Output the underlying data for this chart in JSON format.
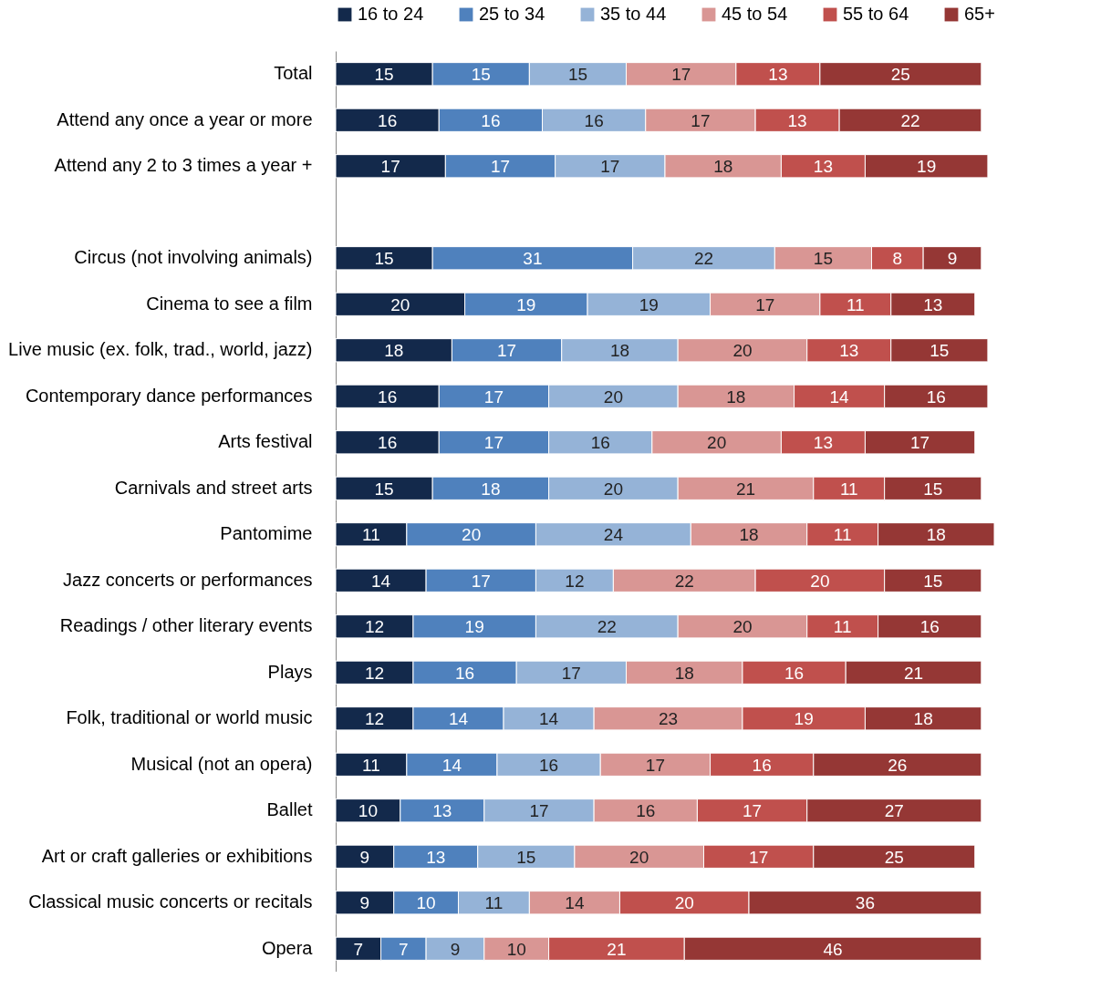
{
  "chart_data": {
    "type": "bar",
    "orientation": "horizontal",
    "stacked": true,
    "data_labels": true,
    "legend": "top",
    "tick_labels": "y",
    "xlim": [
      0,
      102
    ],
    "categories": [
      "Total",
      "Attend any once a year or more",
      "Attend any 2 to 3 times a year +",
      null,
      "Circus (not involving animals)",
      "Cinema to see a film",
      "Live music (ex. folk, trad., world, jazz)",
      "Contemporary dance performances",
      "Arts festival",
      "Carnivals and street arts",
      "Pantomime",
      "Jazz concerts or performances",
      "Readings / other literary events",
      "Plays",
      "Folk, traditional or world music",
      "Musical (not an opera)",
      "Ballet",
      "Art or craft galleries or exhibitions",
      "Classical music concerts or recitals",
      "Opera"
    ],
    "series": [
      {
        "name": "16 to 24",
        "color": "#13294b",
        "values": [
          15,
          16,
          17,
          null,
          15,
          20,
          18,
          16,
          16,
          15,
          11,
          14,
          12,
          12,
          12,
          11,
          10,
          9,
          9,
          7
        ]
      },
      {
        "name": "25 to 34",
        "color": "#4f81bd",
        "values": [
          15,
          16,
          17,
          null,
          31,
          19,
          17,
          17,
          17,
          18,
          20,
          17,
          19,
          16,
          14,
          14,
          13,
          13,
          10,
          7
        ]
      },
      {
        "name": "35 to 44",
        "color": "#95b3d7",
        "values": [
          15,
          16,
          17,
          null,
          22,
          19,
          18,
          20,
          16,
          20,
          24,
          12,
          22,
          17,
          14,
          16,
          17,
          15,
          11,
          9
        ]
      },
      {
        "name": "45 to 54",
        "color": "#d99694",
        "values": [
          17,
          17,
          18,
          null,
          15,
          17,
          20,
          18,
          20,
          21,
          18,
          22,
          20,
          18,
          23,
          17,
          16,
          20,
          14,
          10
        ]
      },
      {
        "name": "55 to 64",
        "color": "#c0504d",
        "values": [
          13,
          13,
          13,
          null,
          8,
          11,
          13,
          14,
          13,
          11,
          11,
          20,
          11,
          16,
          19,
          16,
          17,
          17,
          20,
          21
        ]
      },
      {
        "name": "65+",
        "color": "#953735",
        "values": [
          25,
          22,
          19,
          null,
          9,
          13,
          15,
          16,
          17,
          15,
          18,
          15,
          16,
          21,
          18,
          26,
          27,
          25,
          36,
          46
        ]
      }
    ]
  }
}
